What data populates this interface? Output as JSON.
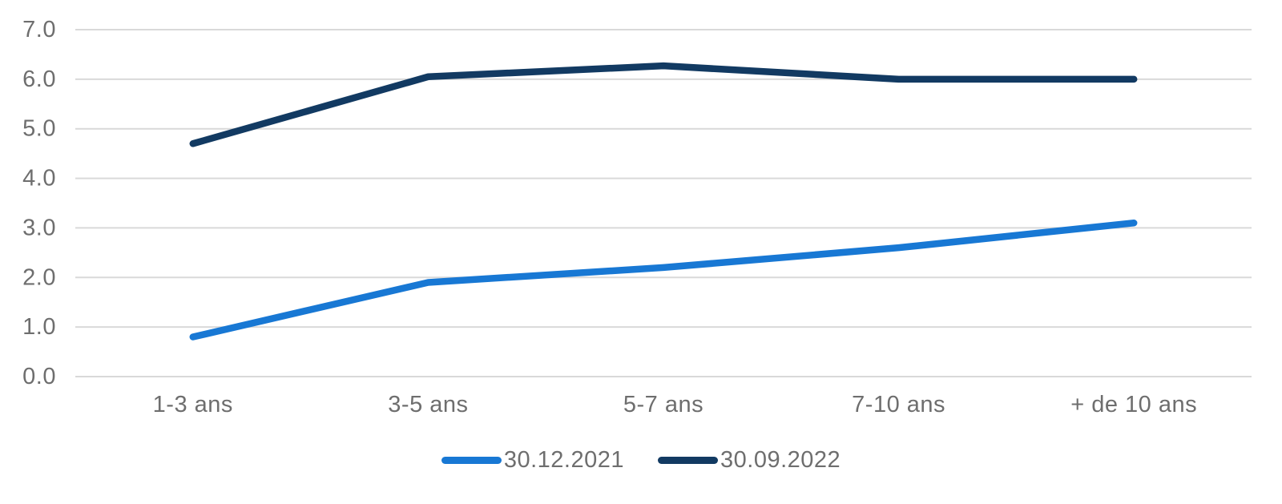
{
  "chart_data": {
    "type": "line",
    "title": "",
    "xlabel": "",
    "ylabel": "",
    "categories": [
      "1-3 ans",
      "3-5 ans",
      "5-7 ans",
      "7-10 ans",
      "+ de 10 ans"
    ],
    "series": [
      {
        "name": "30.12.2021",
        "color": "#1878d4",
        "values": [
          0.8,
          1.9,
          2.2,
          2.6,
          3.1
        ]
      },
      {
        "name": "30.09.2022",
        "color": "#123a62",
        "values": [
          4.7,
          6.05,
          6.27,
          6.0,
          6.0
        ]
      }
    ],
    "ylim": [
      0,
      7
    ],
    "y_ticks": [
      0,
      1,
      2,
      3,
      4,
      5,
      6,
      7
    ],
    "y_tick_labels": [
      "0.0",
      "1.0",
      "2.0",
      "3.0",
      "4.0",
      "5.0",
      "6.0",
      "7.0"
    ],
    "grid": true,
    "legend_position": "bottom"
  },
  "colors": {
    "grid": "#d9d9d9",
    "axis_text": "#6e6e6e",
    "background": "#ffffff"
  }
}
